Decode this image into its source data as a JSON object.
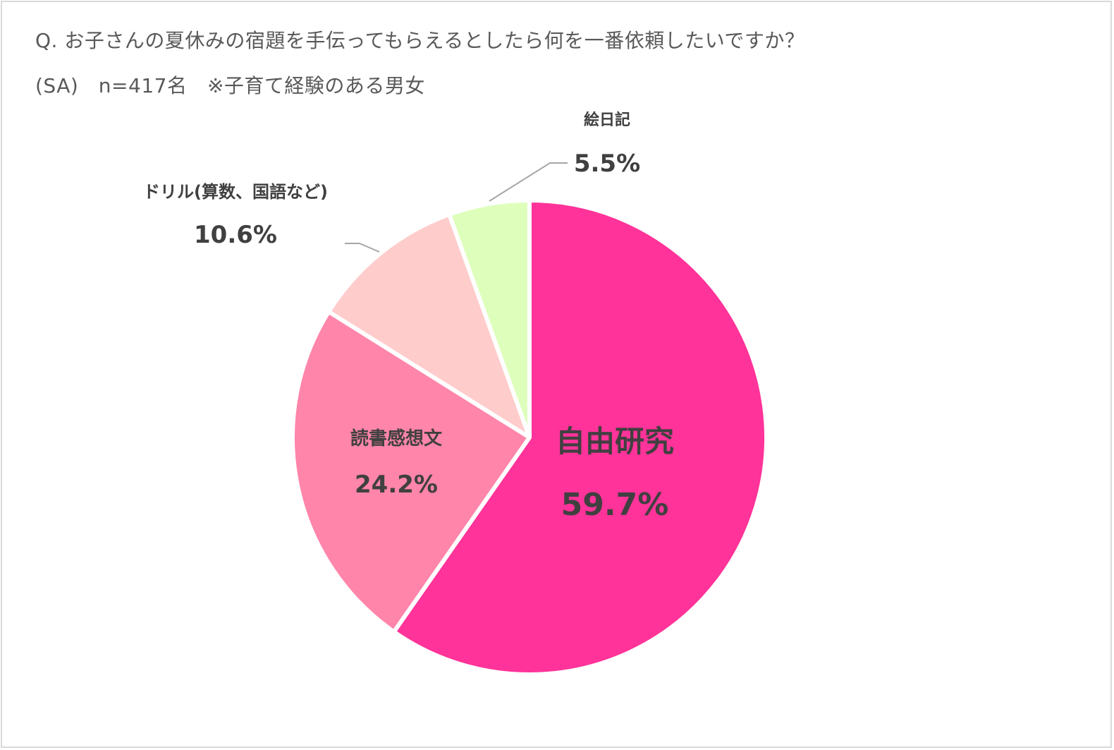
{
  "title": "Q. お子さんの夏休みの宿題を手伝ってもらえるとしたら何を一番依頼したいですか？",
  "subtitle": "(SA)　n=417名　※子育て経験のある男女",
  "chart_data": {
    "type": "pie",
    "start": "12 o'clock",
    "direction": "clockwise",
    "slices": [
      {
        "label": "自由研究",
        "value": 59.7,
        "value_text": "59.7%",
        "color": "#ff3399"
      },
      {
        "label": "読書感想文",
        "value": 24.2,
        "value_text": "24.2%",
        "color": "#ff85aa"
      },
      {
        "label": "ドリル(算数、国語など)",
        "value": 10.6,
        "value_text": "10.6%",
        "color": "#ffcccc"
      },
      {
        "label": "絵日記",
        "value": 5.5,
        "value_text": "5.5%",
        "color": "#ddffbb"
      }
    ]
  }
}
